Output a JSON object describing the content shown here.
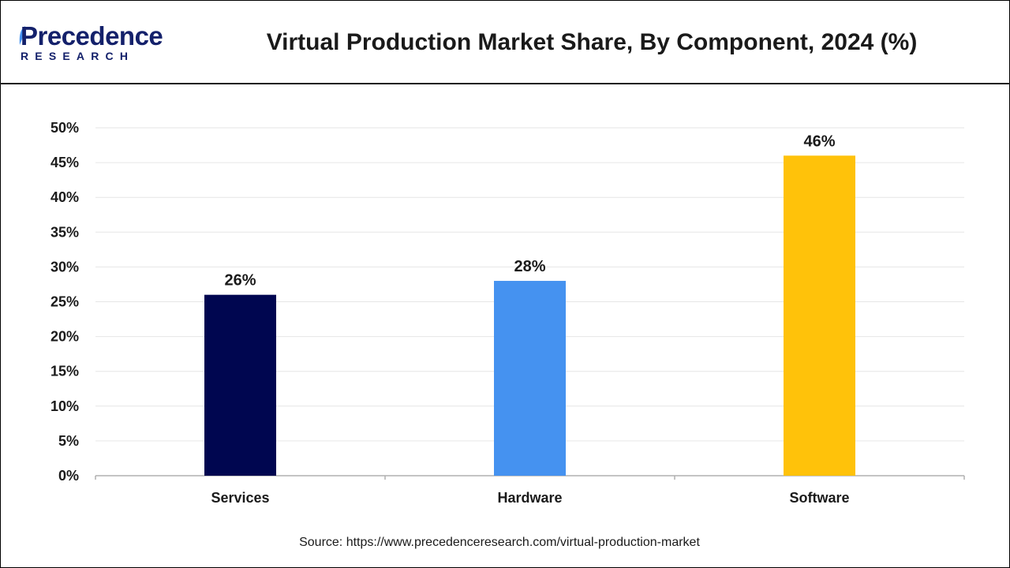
{
  "header": {
    "logo_main": "Precedence",
    "logo_sub": "RESEARCH",
    "title": "Virtual Production Market Share, By Component, 2024 (%)"
  },
  "chart_data": {
    "type": "bar",
    "title": "Virtual Production Market Share, By Component, 2024 (%)",
    "categories": [
      "Services",
      "Hardware",
      "Software"
    ],
    "values": [
      26,
      28,
      46
    ],
    "value_labels": [
      "26%",
      "28%",
      "46%"
    ],
    "bar_colors": [
      "#000650",
      "#4592F0",
      "#FFC20A"
    ],
    "ylim": [
      0,
      50
    ],
    "yticks": [
      0,
      5,
      10,
      15,
      20,
      25,
      30,
      35,
      40,
      45,
      50
    ],
    "ytick_suffix": "%",
    "xlabel": "",
    "ylabel": "",
    "grid": true,
    "legend": "none"
  },
  "source": "Source: https://www.precedenceresearch.com/virtual-production-market"
}
